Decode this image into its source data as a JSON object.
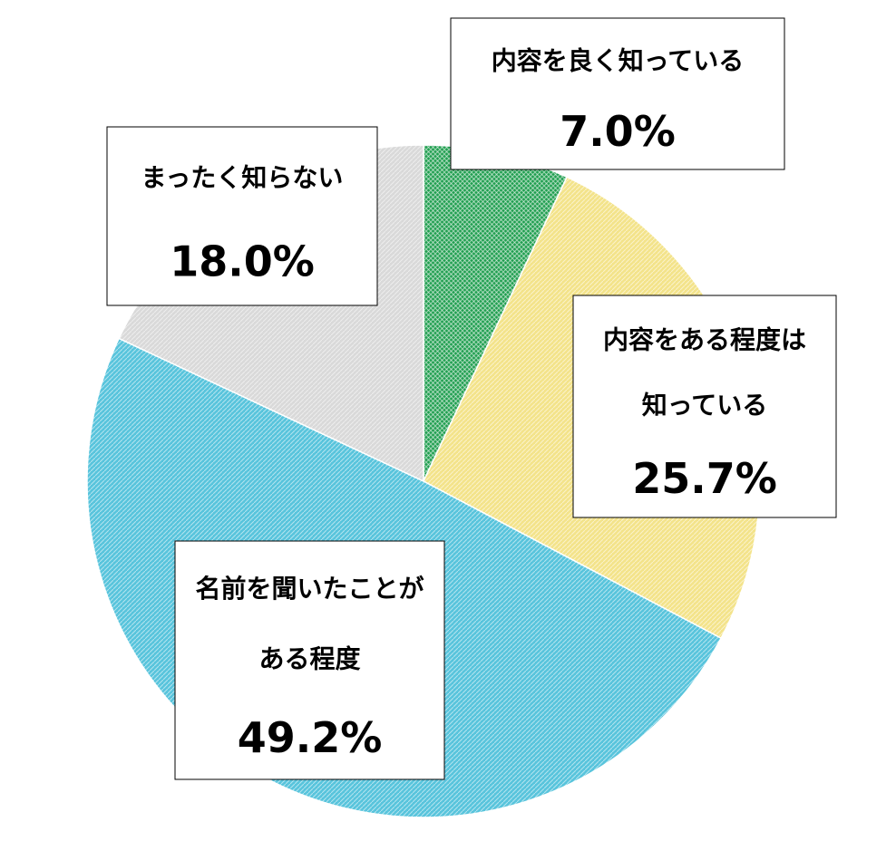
{
  "chart_data": {
    "type": "pie",
    "categories": [
      [
        "内容を良く知っている"
      ],
      [
        "内容をある程度は",
        "知っている"
      ],
      [
        "名前を聞いたことが",
        "ある程度"
      ],
      [
        "まったく知らない"
      ]
    ],
    "values": [
      7.0,
      25.7,
      49.2,
      18.0
    ],
    "value_labels": [
      "7.0%",
      "25.7%",
      "49.2%",
      "18.0%"
    ],
    "colors": [
      "#1f9e4f",
      "#f3e38a",
      "#58c4dc",
      "#d9d9d9"
    ]
  }
}
